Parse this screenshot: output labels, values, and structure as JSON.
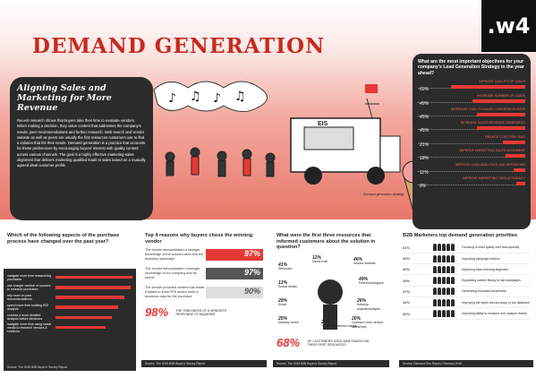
{
  "logo": {
    "text": ".w4"
  },
  "title": "DEMAND GENERATION",
  "intro": {
    "heading": "Aligning Sales and Marketing for More Revenue",
    "body": "Recent research shows that buyers take their time to evaluate vendors. When making a decision, they value content that addresses the company's needs, peer recommendations and further research. Web search and vendor website as well as peers are usually the first resources customers use to find a solution that fits their needs. Demand generation is a practice that accounts for these preferences by encouraging buyers' interest with quality content across various channels. The goal is a highly effective marketing-sales alignment that delivers marketing qualified leads to sales based on a mutually agreed ideal customer profile."
  },
  "scene": {
    "truck_sign": "EIS",
    "caption": "Demand generation strategy"
  },
  "objectives": {
    "heading": "What are the most important objectives for your company's Lead Generation Strategy in the year ahead?",
    "items": [
      {
        "label": "IMPROVE QUALITY OF LEADS",
        "pct": "69%",
        "value": 69
      },
      {
        "label": "INCREASE NUMBER OF LEADS",
        "pct": "49%",
        "value": 49
      },
      {
        "label": "INCREASE LEAD-TO-SALES CONVERSION RATE",
        "pct": "45%",
        "value": 45
      },
      {
        "label": "INCREASE SALES REVENUE GENERATED",
        "pct": "45%",
        "value": 45
      },
      {
        "label": "REDUCE COST PER LEAD",
        "pct": "21%",
        "value": 21
      },
      {
        "label": "IMPROVE MARKETING-SALES ALIGNMENT",
        "pct": "18%",
        "value": 18
      },
      {
        "label": "IMPROVE LEAD ANALYTICS AND REPORTING",
        "pct": "11%",
        "value": 11
      },
      {
        "label": "IMPROVE MARKETING DATA ACCURACY",
        "pct": "8%",
        "value": 8
      }
    ]
  },
  "process": {
    "heading": "Which of the following aspects of the purchase process have changed over the past year?",
    "rows": [
      {
        "label": "navigate more time researching purchases",
        "value": 65
      },
      {
        "label": "use a larger number of sources to research purchases",
        "value": 60
      },
      {
        "label": "rely more on peer recommendations",
        "value": 55
      },
      {
        "label": "spend more time building ROI analysis",
        "value": 50
      },
      {
        "label": "conduct a more detailed analysis before decisions",
        "value": 45
      },
      {
        "label": "navigate more time using social media to research vendors & solutions",
        "value": 40
      }
    ],
    "source": "Source: The 2015 B2B Buyer's Survey Report"
  },
  "reasons": {
    "heading": "Top 4 reasons why buyers chose the winning vendor",
    "items": [
      {
        "text": "The vendor demonstrated a stronger knowledge of the solution area and the business landscape",
        "pct": "97%",
        "color": "#e53935"
      },
      {
        "text": "The vendor demonstrated a stronger knowledge of our company and its needs",
        "pct": "97%",
        "color": "#555555"
      },
      {
        "text": "The vendor provided content that made it easier to show ROI and/or build a business case for the purchase",
        "pct": "90%",
        "color": "#dddddd"
      }
    ],
    "big": "98%",
    "big_text": "THE TIMELINESS OF A VENDOR'S RESPONSE TO INQUIRIES",
    "source": "Source: The 2015 B2B Buyer's Survey Report"
  },
  "resources": {
    "heading": "What were the first three resources that informed customers about the solution in question?",
    "labels": [
      {
        "pct": "12%",
        "text": "Direct mail"
      },
      {
        "pct": "41%",
        "text": "Webinars"
      },
      {
        "pct": "46%",
        "text": "Vendor website"
      },
      {
        "pct": "49%",
        "text": "Peers/colleagues"
      },
      {
        "pct": "26%",
        "text": "Industry experts/analysts"
      },
      {
        "pct": "20%",
        "text": "Outreach from vendor sales/reps"
      },
      {
        "pct": "22%",
        "text": "Trade or business media"
      },
      {
        "pct": "25%",
        "text": "Industry event"
      },
      {
        "pct": "29%",
        "text": "Email"
      },
      {
        "pct": "13%",
        "text": "Social media"
      }
    ],
    "big": "68%",
    "big_text": "OF CUSTOMERS USED WEB SEARCH AS THEIR FIRST RESOURCE!",
    "source": "Source: The 2015 B2B Buyer's Survey Report"
  },
  "priorities": {
    "heading": "B2B Marketers top demand generation priorities",
    "rows": [
      {
        "pct": "61%",
        "text": "Focusing on lead quality over lead quantity"
      },
      {
        "pct": "49%",
        "text": "Improving campaign metrics"
      },
      {
        "pct": "40%",
        "text": "Improving lead nurturing alignment"
      },
      {
        "pct": "38%",
        "text": "Expanding content library to fuel campaigns"
      },
      {
        "pct": "37%",
        "text": "Generating increased awareness"
      },
      {
        "pct": "34%",
        "text": "Improving the depth and accuracy of our database"
      },
      {
        "pct": "30%",
        "text": "Improving ability to measure and analyze results"
      }
    ],
    "source": "Source: Demand Gen Report, February 2016"
  }
}
